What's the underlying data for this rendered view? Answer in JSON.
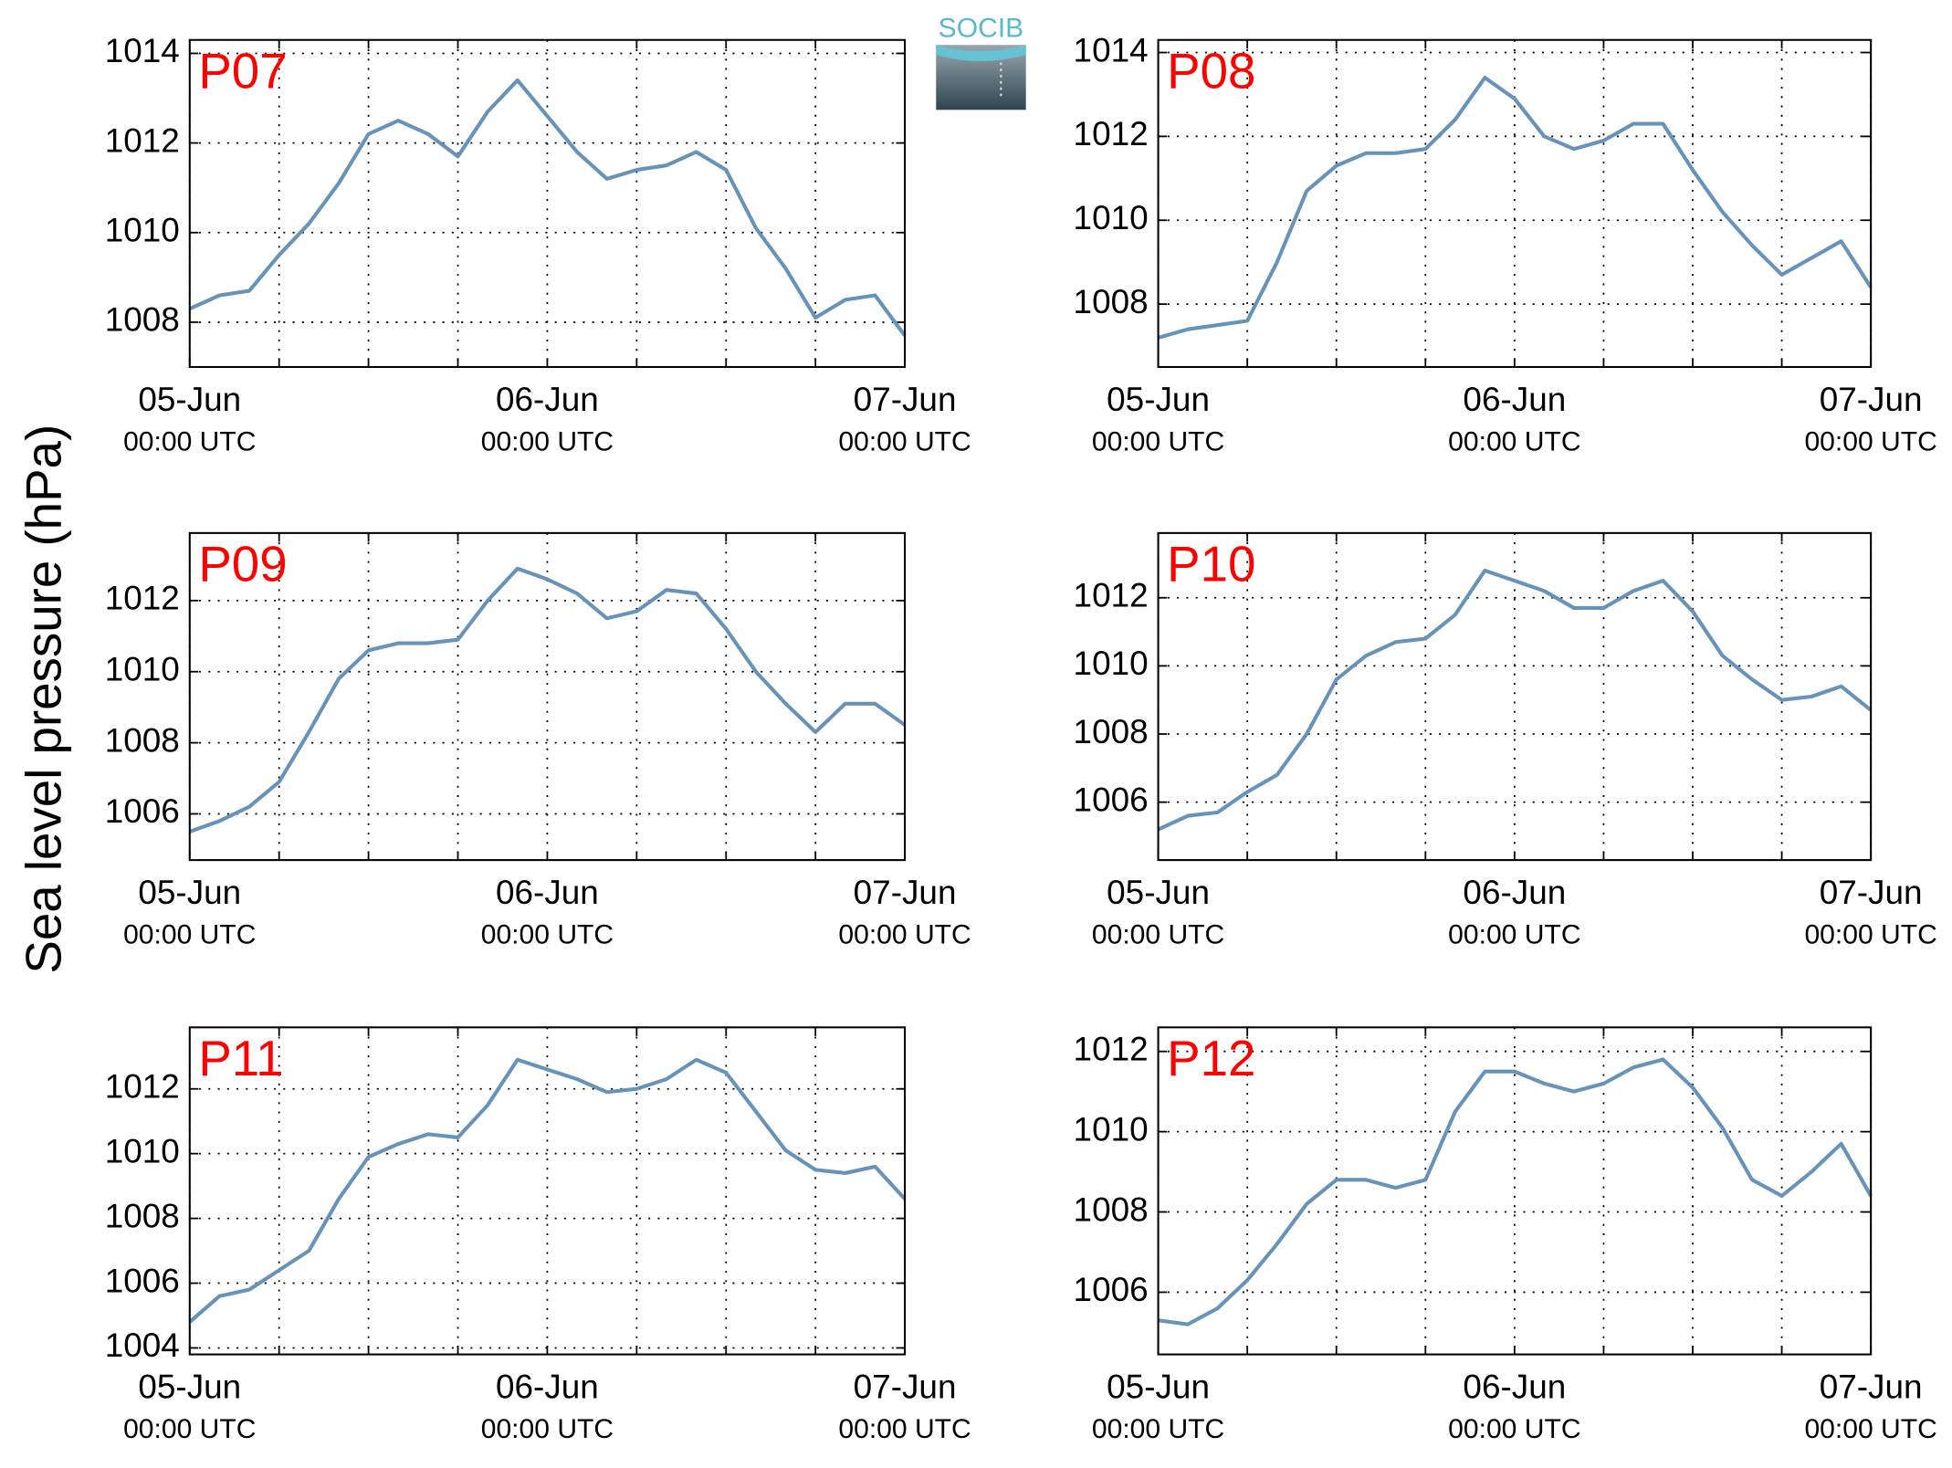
{
  "ylabel": "Sea level pressure (hPa)",
  "logo": "SOCIB",
  "chart_data": [
    {
      "type": "line",
      "title": "P07",
      "color": "#6893b8",
      "grid": true,
      "x": [
        "05-Jun 00:00",
        "05-Jun 02:00",
        "05-Jun 04:00",
        "05-Jun 06:00",
        "05-Jun 08:00",
        "05-Jun 10:00",
        "05-Jun 12:00",
        "05-Jun 14:00",
        "05-Jun 16:00",
        "05-Jun 18:00",
        "05-Jun 20:00",
        "05-Jun 22:00",
        "06-Jun 00:00",
        "06-Jun 02:00",
        "06-Jun 04:00",
        "06-Jun 06:00",
        "06-Jun 08:00",
        "06-Jun 10:00",
        "06-Jun 12:00",
        "06-Jun 14:00",
        "06-Jun 16:00",
        "06-Jun 18:00",
        "06-Jun 20:00",
        "06-Jun 22:00",
        "07-Jun 00:00"
      ],
      "values": [
        1008.3,
        1008.6,
        1008.7,
        1009.5,
        1010.2,
        1011.1,
        1012.2,
        1012.5,
        1012.2,
        1011.7,
        1012.7,
        1013.4,
        1012.6,
        1011.8,
        1011.2,
        1011.4,
        1011.5,
        1011.8,
        1011.4,
        1010.1,
        1009.2,
        1008.1,
        1008.5,
        1008.6,
        1007.7
      ],
      "xlim": [
        "05-Jun 00:00",
        "07-Jun 00:00"
      ],
      "xticks": [
        {
          "value": "05-Jun 00:00",
          "label": [
            "05-Jun",
            "00:00 UTC"
          ]
        },
        {
          "value": "06-Jun 00:00",
          "label": [
            "06-Jun",
            "00:00 UTC"
          ]
        },
        {
          "value": "07-Jun 00:00",
          "label": [
            "07-Jun",
            "00:00 UTC"
          ]
        }
      ],
      "xgrid": [
        "05-Jun 06:00",
        "05-Jun 12:00",
        "05-Jun 18:00",
        "06-Jun 06:00",
        "06-Jun 12:00",
        "06-Jun 18:00"
      ],
      "ylim": [
        1007,
        1014.3
      ],
      "yticks": [
        1008,
        1010,
        1012,
        1014
      ]
    },
    {
      "type": "line",
      "title": "P08",
      "color": "#6893b8",
      "grid": true,
      "x": [
        "05-Jun 00:00",
        "05-Jun 02:00",
        "05-Jun 04:00",
        "05-Jun 06:00",
        "05-Jun 08:00",
        "05-Jun 10:00",
        "05-Jun 12:00",
        "05-Jun 14:00",
        "05-Jun 16:00",
        "05-Jun 18:00",
        "05-Jun 20:00",
        "05-Jun 22:00",
        "06-Jun 00:00",
        "06-Jun 02:00",
        "06-Jun 04:00",
        "06-Jun 06:00",
        "06-Jun 08:00",
        "06-Jun 10:00",
        "06-Jun 12:00",
        "06-Jun 14:00",
        "06-Jun 16:00",
        "06-Jun 18:00",
        "06-Jun 20:00",
        "06-Jun 22:00",
        "07-Jun 00:00"
      ],
      "values": [
        1007.2,
        1007.4,
        1007.5,
        1007.6,
        1009.0,
        1010.7,
        1011.3,
        1011.6,
        1011.6,
        1011.7,
        1012.4,
        1013.4,
        1012.9,
        1012.0,
        1011.7,
        1011.9,
        1012.3,
        1012.3,
        1011.2,
        1010.2,
        1009.4,
        1008.7,
        1009.1,
        1009.5,
        1008.4
      ],
      "xlim": [
        "05-Jun 00:00",
        "07-Jun 00:00"
      ],
      "xticks": [
        {
          "value": "05-Jun 00:00",
          "label": [
            "05-Jun",
            "00:00 UTC"
          ]
        },
        {
          "value": "06-Jun 00:00",
          "label": [
            "06-Jun",
            "00:00 UTC"
          ]
        },
        {
          "value": "07-Jun 00:00",
          "label": [
            "07-Jun",
            "00:00 UTC"
          ]
        }
      ],
      "xgrid": [
        "05-Jun 06:00",
        "05-Jun 12:00",
        "05-Jun 18:00",
        "06-Jun 06:00",
        "06-Jun 12:00",
        "06-Jun 18:00"
      ],
      "ylim": [
        1006.5,
        1014.3
      ],
      "yticks": [
        1008,
        1010,
        1012,
        1014
      ]
    },
    {
      "type": "line",
      "title": "P09",
      "color": "#6893b8",
      "grid": true,
      "x": [
        "05-Jun 00:00",
        "05-Jun 02:00",
        "05-Jun 04:00",
        "05-Jun 06:00",
        "05-Jun 08:00",
        "05-Jun 10:00",
        "05-Jun 12:00",
        "05-Jun 14:00",
        "05-Jun 16:00",
        "05-Jun 18:00",
        "05-Jun 20:00",
        "05-Jun 22:00",
        "06-Jun 00:00",
        "06-Jun 02:00",
        "06-Jun 04:00",
        "06-Jun 06:00",
        "06-Jun 08:00",
        "06-Jun 10:00",
        "06-Jun 12:00",
        "06-Jun 14:00",
        "06-Jun 16:00",
        "06-Jun 18:00",
        "06-Jun 20:00",
        "06-Jun 22:00",
        "07-Jun 00:00"
      ],
      "values": [
        1005.5,
        1005.8,
        1006.2,
        1006.9,
        1008.3,
        1009.8,
        1010.6,
        1010.8,
        1010.8,
        1010.9,
        1012.0,
        1012.9,
        1012.6,
        1012.2,
        1011.5,
        1011.7,
        1012.3,
        1012.2,
        1011.2,
        1010.0,
        1009.1,
        1008.3,
        1009.1,
        1009.1,
        1008.5
      ],
      "xlim": [
        "05-Jun 00:00",
        "07-Jun 00:00"
      ],
      "xticks": [
        {
          "value": "05-Jun 00:00",
          "label": [
            "05-Jun",
            "00:00 UTC"
          ]
        },
        {
          "value": "06-Jun 00:00",
          "label": [
            "06-Jun",
            "00:00 UTC"
          ]
        },
        {
          "value": "07-Jun 00:00",
          "label": [
            "07-Jun",
            "00:00 UTC"
          ]
        }
      ],
      "xgrid": [
        "05-Jun 06:00",
        "05-Jun 12:00",
        "05-Jun 18:00",
        "06-Jun 06:00",
        "06-Jun 12:00",
        "06-Jun 18:00"
      ],
      "ylim": [
        1004.7,
        1013.9
      ],
      "yticks": [
        1006,
        1008,
        1010,
        1012
      ]
    },
    {
      "type": "line",
      "title": "P10",
      "color": "#6893b8",
      "grid": true,
      "x": [
        "05-Jun 00:00",
        "05-Jun 02:00",
        "05-Jun 04:00",
        "05-Jun 06:00",
        "05-Jun 08:00",
        "05-Jun 10:00",
        "05-Jun 12:00",
        "05-Jun 14:00",
        "05-Jun 16:00",
        "05-Jun 18:00",
        "05-Jun 20:00",
        "05-Jun 22:00",
        "06-Jun 00:00",
        "06-Jun 02:00",
        "06-Jun 04:00",
        "06-Jun 06:00",
        "06-Jun 08:00",
        "06-Jun 10:00",
        "06-Jun 12:00",
        "06-Jun 14:00",
        "06-Jun 16:00",
        "06-Jun 18:00",
        "06-Jun 20:00",
        "06-Jun 22:00",
        "07-Jun 00:00"
      ],
      "values": [
        1005.2,
        1005.6,
        1005.7,
        1006.3,
        1006.8,
        1008.0,
        1009.6,
        1010.3,
        1010.7,
        1010.8,
        1011.5,
        1012.8,
        1012.5,
        1012.2,
        1011.7,
        1011.7,
        1012.2,
        1012.5,
        1011.6,
        1010.3,
        1009.6,
        1009.0,
        1009.1,
        1009.4,
        1008.7
      ],
      "xlim": [
        "05-Jun 00:00",
        "07-Jun 00:00"
      ],
      "xticks": [
        {
          "value": "05-Jun 00:00",
          "label": [
            "05-Jun",
            "00:00 UTC"
          ]
        },
        {
          "value": "06-Jun 00:00",
          "label": [
            "06-Jun",
            "00:00 UTC"
          ]
        },
        {
          "value": "07-Jun 00:00",
          "label": [
            "07-Jun",
            "00:00 UTC"
          ]
        }
      ],
      "xgrid": [
        "05-Jun 06:00",
        "05-Jun 12:00",
        "05-Jun 18:00",
        "06-Jun 06:00",
        "06-Jun 12:00",
        "06-Jun 18:00"
      ],
      "ylim": [
        1004.3,
        1013.9
      ],
      "yticks": [
        1006,
        1008,
        1010,
        1012
      ]
    },
    {
      "type": "line",
      "title": "P11",
      "color": "#6893b8",
      "grid": true,
      "x": [
        "05-Jun 00:00",
        "05-Jun 02:00",
        "05-Jun 04:00",
        "05-Jun 06:00",
        "05-Jun 08:00",
        "05-Jun 10:00",
        "05-Jun 12:00",
        "05-Jun 14:00",
        "05-Jun 16:00",
        "05-Jun 18:00",
        "05-Jun 20:00",
        "05-Jun 22:00",
        "06-Jun 00:00",
        "06-Jun 02:00",
        "06-Jun 04:00",
        "06-Jun 06:00",
        "06-Jun 08:00",
        "06-Jun 10:00",
        "06-Jun 12:00",
        "06-Jun 14:00",
        "06-Jun 16:00",
        "06-Jun 18:00",
        "06-Jun 20:00",
        "06-Jun 22:00",
        "07-Jun 00:00"
      ],
      "values": [
        1004.8,
        1005.6,
        1005.8,
        1006.4,
        1007.0,
        1008.6,
        1009.9,
        1010.3,
        1010.6,
        1010.5,
        1011.5,
        1012.9,
        1012.6,
        1012.3,
        1011.9,
        1012.0,
        1012.3,
        1012.9,
        1012.5,
        1011.3,
        1010.1,
        1009.5,
        1009.4,
        1009.6,
        1008.6
      ],
      "xlim": [
        "05-Jun 00:00",
        "07-Jun 00:00"
      ],
      "xticks": [
        {
          "value": "05-Jun 00:00",
          "label": [
            "05-Jun",
            "00:00 UTC"
          ]
        },
        {
          "value": "06-Jun 00:00",
          "label": [
            "06-Jun",
            "00:00 UTC"
          ]
        },
        {
          "value": "07-Jun 00:00",
          "label": [
            "07-Jun",
            "00:00 UTC"
          ]
        }
      ],
      "xgrid": [
        "05-Jun 06:00",
        "05-Jun 12:00",
        "05-Jun 18:00",
        "06-Jun 06:00",
        "06-Jun 12:00",
        "06-Jun 18:00"
      ],
      "ylim": [
        1003.8,
        1013.9
      ],
      "yticks": [
        1004,
        1006,
        1008,
        1010,
        1012
      ]
    },
    {
      "type": "line",
      "title": "P12",
      "color": "#6893b8",
      "grid": true,
      "x": [
        "05-Jun 00:00",
        "05-Jun 02:00",
        "05-Jun 04:00",
        "05-Jun 06:00",
        "05-Jun 08:00",
        "05-Jun 10:00",
        "05-Jun 12:00",
        "05-Jun 14:00",
        "05-Jun 16:00",
        "05-Jun 18:00",
        "05-Jun 20:00",
        "05-Jun 22:00",
        "06-Jun 00:00",
        "06-Jun 02:00",
        "06-Jun 04:00",
        "06-Jun 06:00",
        "06-Jun 08:00",
        "06-Jun 10:00",
        "06-Jun 12:00",
        "06-Jun 14:00",
        "06-Jun 16:00",
        "06-Jun 18:00",
        "06-Jun 20:00",
        "06-Jun 22:00",
        "07-Jun 00:00"
      ],
      "values": [
        1005.3,
        1005.2,
        1005.6,
        1006.3,
        1007.2,
        1008.2,
        1008.8,
        1008.8,
        1008.6,
        1008.8,
        1010.5,
        1011.5,
        1011.5,
        1011.2,
        1011.0,
        1011.2,
        1011.6,
        1011.8,
        1011.1,
        1010.1,
        1008.8,
        1008.4,
        1009.0,
        1009.7,
        1008.4
      ],
      "xlim": [
        "05-Jun 00:00",
        "07-Jun 00:00"
      ],
      "xticks": [
        {
          "value": "05-Jun 00:00",
          "label": [
            "05-Jun",
            "00:00 UTC"
          ]
        },
        {
          "value": "06-Jun 00:00",
          "label": [
            "06-Jun",
            "00:00 UTC"
          ]
        },
        {
          "value": "07-Jun 00:00",
          "label": [
            "07-Jun",
            "00:00 UTC"
          ]
        }
      ],
      "xgrid": [
        "05-Jun 06:00",
        "05-Jun 12:00",
        "05-Jun 18:00",
        "06-Jun 06:00",
        "06-Jun 12:00",
        "06-Jun 18:00"
      ],
      "ylim": [
        1004.45,
        1012.6
      ],
      "yticks": [
        1006,
        1008,
        1010,
        1012
      ]
    }
  ]
}
